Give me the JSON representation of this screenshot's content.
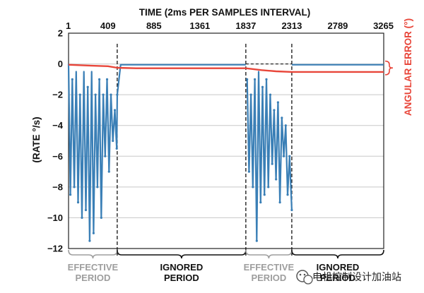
{
  "chart_data": {
    "type": "line",
    "title": "TIME (2ms PER SAMPLES INTERVAL)",
    "ylabel": "(RATE °/s)",
    "y2label": "ANGULAR ERROR (°)",
    "ylim": [
      -12,
      2
    ],
    "y_ticks": [
      "2",
      "0",
      "−2",
      "−4",
      "−6",
      "−8",
      "−10",
      "−12"
    ],
    "y_tick_values": [
      2,
      0,
      -2,
      -4,
      -6,
      -8,
      -10,
      -12
    ],
    "x_ticks": [
      "1",
      "409",
      "885",
      "1361",
      "1837",
      "2313",
      "2789",
      "3265"
    ],
    "x_tick_values": [
      1,
      409,
      885,
      1361,
      1837,
      2313,
      2789,
      3265
    ],
    "xlim": [
      1,
      3265
    ],
    "grid": true,
    "dashed_markers_x": [
      505,
      1837,
      2313
    ],
    "series": [
      {
        "name": "RATE",
        "color": "#3a7fb6",
        "segments": [
          {
            "x": [
              1,
              20,
              40,
              60,
              80,
              100,
              120,
              140,
              160,
              180,
              200,
              220,
              240,
              260,
              280,
              300,
              320,
              340,
              360,
              380,
              400,
              420,
              440,
              460,
              480,
              500,
              505,
              540,
              620,
              700,
              800,
              900,
              1000,
              1100,
              1200,
              1300,
              1400,
              1500,
              1600,
              1700,
              1800,
              1837
            ],
            "y": [
              0,
              -8.5,
              -1,
              -8,
              -0.5,
              -9,
              -2,
              -10,
              -0.5,
              -9.5,
              -1.5,
              -11.5,
              -0.5,
              -11,
              -2,
              -8,
              -1,
              -10,
              -2,
              -6,
              -1,
              -7,
              -2,
              -5,
              -3,
              -5.5,
              -2,
              -0.05,
              -0.05,
              -0.05,
              -0.05,
              -0.05,
              -0.05,
              -0.05,
              -0.05,
              -0.05,
              -0.05,
              -0.05,
              -0.05,
              -0.05,
              -0.05,
              -0.05
            ]
          },
          {
            "x": [
              1850,
              1870,
              1890,
              1910,
              1930,
              1950,
              1970,
              1990,
              2010,
              2030,
              2050,
              2070,
              2090,
              2110,
              2130,
              2150,
              2170,
              2190,
              2210,
              2230,
              2250,
              2270,
              2290,
              2313
            ],
            "y": [
              -1,
              -7,
              -2,
              -8,
              -1,
              -11.5,
              -0.5,
              -9,
              -1.5,
              -8.5,
              -1,
              -8,
              -2,
              -6.5,
              -3,
              -7.5,
              -2.5,
              -9,
              -3.5,
              -6,
              -4,
              -8.5,
              -6,
              -9.5
            ]
          },
          {
            "x": [
              2313,
              2500,
              2700,
              2900,
              3100,
              3265
            ],
            "y": [
              -0.05,
              -0.05,
              -0.05,
              -0.05,
              -0.05,
              -0.05
            ]
          }
        ]
      },
      {
        "name": "ANGULAR ERROR",
        "color": "#e8463a",
        "x": [
          1,
          200,
          409,
          505,
          700,
          900,
          1100,
          1300,
          1500,
          1700,
          1837,
          2000,
          2150,
          2313,
          2500,
          2700,
          2900,
          3100,
          3265
        ],
        "y": [
          -0.05,
          -0.1,
          -0.15,
          -0.25,
          -0.28,
          -0.28,
          -0.28,
          -0.28,
          -0.28,
          -0.28,
          -0.28,
          -0.4,
          -0.48,
          -0.52,
          -0.52,
          -0.52,
          -0.52,
          -0.52,
          -0.52
        ]
      }
    ],
    "periods": [
      {
        "label_line1": "EFFECTIVE",
        "label_line2": "PERIOD",
        "x_start": 1,
        "x_end": 505,
        "color": "#9e9e9e"
      },
      {
        "label_line1": "IGNORED",
        "label_line2": "PERIOD",
        "x_start": 505,
        "x_end": 1837,
        "color": "#111111"
      },
      {
        "label_line1": "EFFECTIVE",
        "label_line2": "PERIOD",
        "x_start": 1837,
        "x_end": 2313,
        "color": "#9e9e9e"
      },
      {
        "label_line1": "IGNORED",
        "label_line2": "PERIOD",
        "x_start": 2313,
        "x_end": 3265,
        "color": "#111111"
      }
    ]
  },
  "watermark": {
    "text": "电机控制设计加油站",
    "icon": "wechat-icon"
  }
}
